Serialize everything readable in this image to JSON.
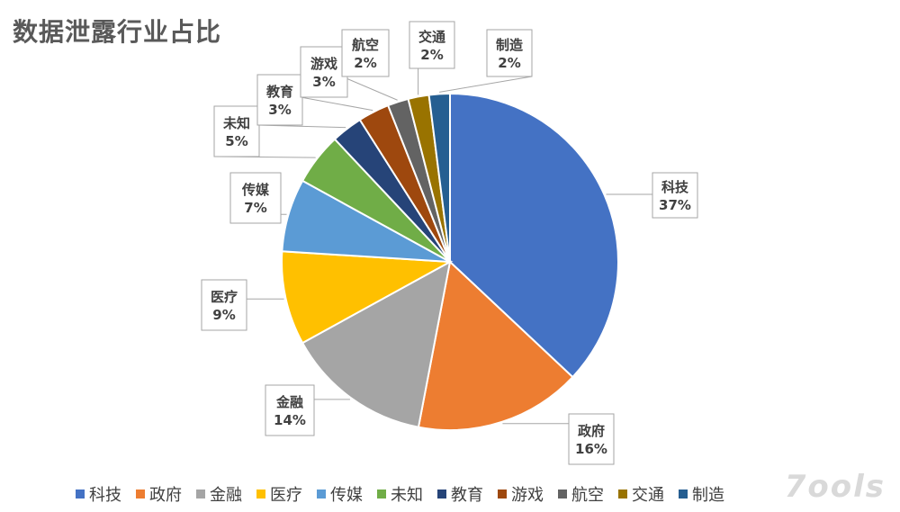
{
  "chart_data": {
    "type": "pie",
    "title": "数据泄露行业占比",
    "categories": [
      "科技",
      "政府",
      "金融",
      "医疗",
      "传媒",
      "未知",
      "教育",
      "游戏",
      "航空",
      "交通",
      "制造"
    ],
    "values": [
      37,
      16,
      14,
      9,
      7,
      5,
      3,
      3,
      2,
      2,
      2
    ],
    "data_labels": [
      "37%",
      "16%",
      "14%",
      "9%",
      "7%",
      "5%",
      "3%",
      "3%",
      "2%",
      "2%",
      "2%"
    ],
    "colors": [
      "#4472C4",
      "#ED7D31",
      "#A5A5A5",
      "#FFC000",
      "#5B9BD5",
      "#70AD47",
      "#264478",
      "#9E480E",
      "#636363",
      "#997300",
      "#255E91"
    ],
    "legend_position": "bottom",
    "start_angle": "top",
    "direction": "clockwise"
  },
  "watermark": "7ools"
}
